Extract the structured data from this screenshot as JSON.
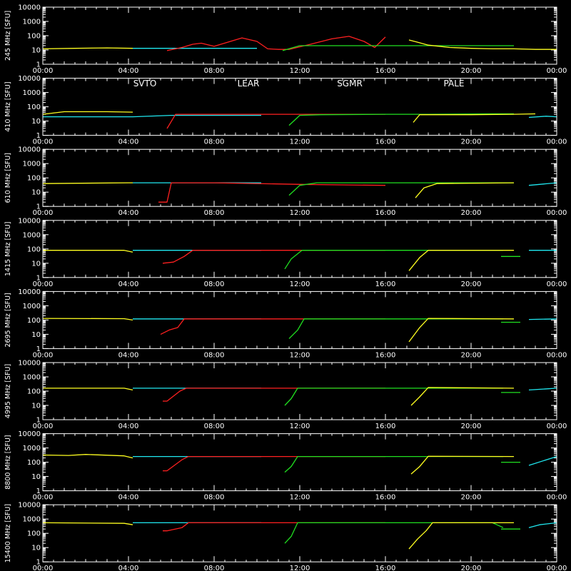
{
  "colors": {
    "background": "#000000",
    "axes": "#ffffff",
    "SVTO": "#ff2020",
    "LEAR": "#20e8f0",
    "SGMR": "#20e020",
    "PALE": "#ffff20"
  },
  "chart_data": {
    "type": "line",
    "scale_y": "log",
    "grid": false,
    "legend": {
      "placement": "top (second panel)",
      "entries": [
        "SVTO",
        "LEAR",
        "SGMR",
        "PALE"
      ]
    },
    "x_ticks": [
      "00:00",
      "04:00",
      "08:00",
      "12:00",
      "16:00",
      "20:00",
      "00:00"
    ],
    "y_ticks": [
      "1",
      "10",
      "100",
      "1000",
      "10000"
    ],
    "ylim": [
      1,
      10000
    ],
    "xlim_hours": [
      0,
      24
    ],
    "panels": [
      {
        "ylabel": "245 MHz  [SFU]",
        "series": [
          {
            "name": "PALE",
            "x": [
              0,
              1.5,
              3,
              4.2
            ],
            "y": [
              12,
              13,
              14,
              13
            ]
          },
          {
            "name": "LEAR",
            "x": [
              4.2,
              6,
              8,
              10
            ],
            "y": [
              13,
              13,
              13,
              13
            ]
          },
          {
            "name": "SVTO",
            "x": [
              5.8,
              6.5,
              7,
              7.4,
              8,
              9.3,
              10,
              10.5,
              11,
              11.5,
              12.5,
              13.5,
              14.3,
              15,
              15.5,
              16
            ],
            "y": [
              9,
              15,
              25,
              30,
              18,
              70,
              40,
              12,
              11,
              11,
              25,
              60,
              90,
              40,
              15,
              80
            ]
          },
          {
            "name": "SGMR",
            "x": [
              11.2,
              12,
              13,
              14,
              15,
              16,
              17,
              18,
              19,
              20,
              21,
              22
            ],
            "y": [
              9,
              20,
              20,
              20,
              20,
              20,
              20,
              20,
              20,
              20,
              20,
              20
            ]
          },
          {
            "name": "PALE",
            "x": [
              17.1,
              17.5,
              18,
              19,
              20,
              21,
              22,
              23,
              24
            ],
            "y": [
              50,
              35,
              22,
              15,
              13,
              12,
              12,
              11,
              11
            ]
          }
        ]
      },
      {
        "ylabel": "410 MHz  [SFU]",
        "series": [
          {
            "name": "PALE",
            "x": [
              0,
              1,
              3,
              4.2
            ],
            "y": [
              30,
              45,
              45,
              42
            ]
          },
          {
            "name": "LEAR",
            "x": [
              0,
              4.2,
              6,
              10,
              10.2
            ],
            "y": [
              20,
              20,
              25,
              25,
              25
            ]
          },
          {
            "name": "SVTO",
            "x": [
              5.8,
              6.2,
              8,
              11,
              14,
              16
            ],
            "y": [
              3,
              30,
              30,
              30,
              30,
              30
            ]
          },
          {
            "name": "SGMR",
            "x": [
              11.5,
              12,
              13,
              16,
              18,
              21,
              22
            ],
            "y": [
              5,
              25,
              28,
              30,
              30,
              32,
              32
            ]
          },
          {
            "name": "PALE",
            "x": [
              17.3,
              17.6,
              20,
              22,
              23
            ],
            "y": [
              8,
              28,
              28,
              30,
              32
            ]
          },
          {
            "name": "LEAR",
            "x": [
              22.7,
              23.5,
              24
            ],
            "y": [
              18,
              22,
              20
            ]
          }
        ]
      },
      {
        "ylabel": "610 MHz  [SFU]",
        "series": [
          {
            "name": "PALE",
            "x": [
              0,
              4,
              4.2
            ],
            "y": [
              40,
              45,
              45
            ]
          },
          {
            "name": "LEAR",
            "x": [
              4.2,
              8,
              10.2
            ],
            "y": [
              45,
              45,
              45
            ]
          },
          {
            "name": "SVTO",
            "x": [
              5.4,
              5.8,
              6,
              8,
              12,
              16
            ],
            "y": [
              2,
              2,
              45,
              45,
              35,
              30
            ]
          },
          {
            "name": "SGMR",
            "x": [
              11.5,
              12,
              12.8,
              15,
              18,
              22
            ],
            "y": [
              6,
              30,
              45,
              45,
              45,
              45
            ]
          },
          {
            "name": "PALE",
            "x": [
              17.4,
              17.8,
              18.4,
              22
            ],
            "y": [
              4,
              20,
              40,
              45
            ]
          },
          {
            "name": "LEAR",
            "x": [
              22.7,
              24
            ],
            "y": [
              30,
              45
            ]
          }
        ]
      },
      {
        "ylabel": "1415 MHz  [SFU]",
        "series": [
          {
            "name": "PALE",
            "x": [
              0,
              3.8,
              4.2
            ],
            "y": [
              80,
              80,
              60
            ]
          },
          {
            "name": "LEAR",
            "x": [
              4.2,
              8,
              10.2
            ],
            "y": [
              80,
              80,
              80
            ]
          },
          {
            "name": "SVTO",
            "x": [
              5.6,
              6.1,
              6.6,
              7,
              10,
              16
            ],
            "y": [
              10,
              12,
              30,
              80,
              80,
              80
            ]
          },
          {
            "name": "SGMR",
            "x": [
              11.3,
              11.6,
              12.1,
              16,
              21,
              21.5
            ],
            "y": [
              4,
              20,
              80,
              80,
              80,
              80
            ]
          },
          {
            "name": "PALE",
            "x": [
              17.1,
              17.6,
              18,
              22
            ],
            "y": [
              3,
              25,
              80,
              80
            ]
          },
          {
            "name": "SGMR",
            "x": [
              21.4,
              22.3
            ],
            "y": [
              30,
              30
            ]
          },
          {
            "name": "LEAR",
            "x": [
              22.7,
              24
            ],
            "y": [
              80,
              80
            ]
          }
        ]
      },
      {
        "ylabel": "2695 MHz  [SFU]",
        "series": [
          {
            "name": "PALE",
            "x": [
              0,
              3.8,
              4.2
            ],
            "y": [
              130,
              125,
              100
            ]
          },
          {
            "name": "LEAR",
            "x": [
              4.2,
              8,
              10.2
            ],
            "y": [
              120,
              120,
              120
            ]
          },
          {
            "name": "SVTO",
            "x": [
              5.5,
              5.9,
              6.3,
              6.6,
              10,
              16
            ],
            "y": [
              10,
              20,
              30,
              120,
              120,
              120
            ]
          },
          {
            "name": "SGMR",
            "x": [
              11.5,
              11.9,
              12.2,
              16,
              21,
              21.5
            ],
            "y": [
              5,
              20,
              120,
              120,
              120,
              120
            ]
          },
          {
            "name": "PALE",
            "x": [
              17.1,
              17.6,
              18,
              22
            ],
            "y": [
              3,
              30,
              130,
              120
            ]
          },
          {
            "name": "SGMR",
            "x": [
              21.4,
              22.3
            ],
            "y": [
              70,
              70
            ]
          },
          {
            "name": "LEAR",
            "x": [
              22.7,
              24
            ],
            "y": [
              110,
              120
            ]
          }
        ]
      },
      {
        "ylabel": "4995 MHz  [SFU]",
        "series": [
          {
            "name": "PALE",
            "x": [
              0,
              3.8,
              4.2
            ],
            "y": [
              160,
              160,
              120
            ]
          },
          {
            "name": "LEAR",
            "x": [
              4.2,
              8,
              10.2
            ],
            "y": [
              160,
              160,
              160
            ]
          },
          {
            "name": "SVTO",
            "x": [
              5.6,
              5.8,
              6.4,
              6.7,
              10,
              16
            ],
            "y": [
              20,
              20,
              100,
              160,
              160,
              160
            ]
          },
          {
            "name": "SGMR",
            "x": [
              11.3,
              11.6,
              11.9,
              16,
              21,
              21.5
            ],
            "y": [
              10,
              30,
              160,
              160,
              160,
              160
            ]
          },
          {
            "name": "PALE",
            "x": [
              17.2,
              17.6,
              18,
              22
            ],
            "y": [
              10,
              40,
              180,
              160
            ]
          },
          {
            "name": "SGMR",
            "x": [
              21.4,
              22.3
            ],
            "y": [
              80,
              80
            ]
          },
          {
            "name": "LEAR",
            "x": [
              22.7,
              24
            ],
            "y": [
              120,
              160
            ]
          }
        ]
      },
      {
        "ylabel": "8800 MHz  [SFU]",
        "series": [
          {
            "name": "PALE",
            "x": [
              0,
              1.2,
              2,
              3.8,
              4.2
            ],
            "y": [
              320,
              300,
              350,
              280,
              200
            ]
          },
          {
            "name": "LEAR",
            "x": [
              4.2,
              8,
              10.2
            ],
            "y": [
              250,
              250,
              250
            ]
          },
          {
            "name": "SVTO",
            "x": [
              5.6,
              5.8,
              6.5,
              6.8,
              10,
              16
            ],
            "y": [
              25,
              25,
              150,
              250,
              250,
              250
            ]
          },
          {
            "name": "SGMR",
            "x": [
              11.3,
              11.6,
              11.9,
              16,
              21,
              21.5
            ],
            "y": [
              20,
              50,
              250,
              250,
              250,
              250
            ]
          },
          {
            "name": "PALE",
            "x": [
              17.2,
              17.6,
              18,
              22
            ],
            "y": [
              15,
              50,
              260,
              250
            ]
          },
          {
            "name": "SGMR",
            "x": [
              21.4,
              22.3
            ],
            "y": [
              100,
              100
            ]
          },
          {
            "name": "LEAR",
            "x": [
              22.7,
              24
            ],
            "y": [
              60,
              250
            ]
          }
        ]
      },
      {
        "ylabel": "15400 MHz  [SFU]",
        "series": [
          {
            "name": "PALE",
            "x": [
              0,
              3.8,
              4.2
            ],
            "y": [
              550,
              500,
              400
            ]
          },
          {
            "name": "LEAR",
            "x": [
              4.2,
              8,
              10.2
            ],
            "y": [
              550,
              550,
              550
            ]
          },
          {
            "name": "SVTO",
            "x": [
              5.6,
              5.8,
              6.5,
              6.8,
              10,
              16
            ],
            "y": [
              150,
              150,
              250,
              550,
              550,
              550
            ]
          },
          {
            "name": "SGMR",
            "x": [
              11.3,
              11.6,
              11.9,
              16,
              21,
              21.5
            ],
            "y": [
              20,
              60,
              550,
              550,
              550,
              250
            ]
          },
          {
            "name": "PALE",
            "x": [
              17.1,
              17.5,
              17.9,
              18.2,
              22
            ],
            "y": [
              8,
              40,
              150,
              550,
              550
            ]
          },
          {
            "name": "SGMR",
            "x": [
              21.4,
              22.3
            ],
            "y": [
              200,
              200
            ]
          },
          {
            "name": "LEAR",
            "x": [
              22.7,
              23.2,
              24
            ],
            "y": [
              250,
              400,
              550
            ]
          }
        ]
      }
    ]
  }
}
